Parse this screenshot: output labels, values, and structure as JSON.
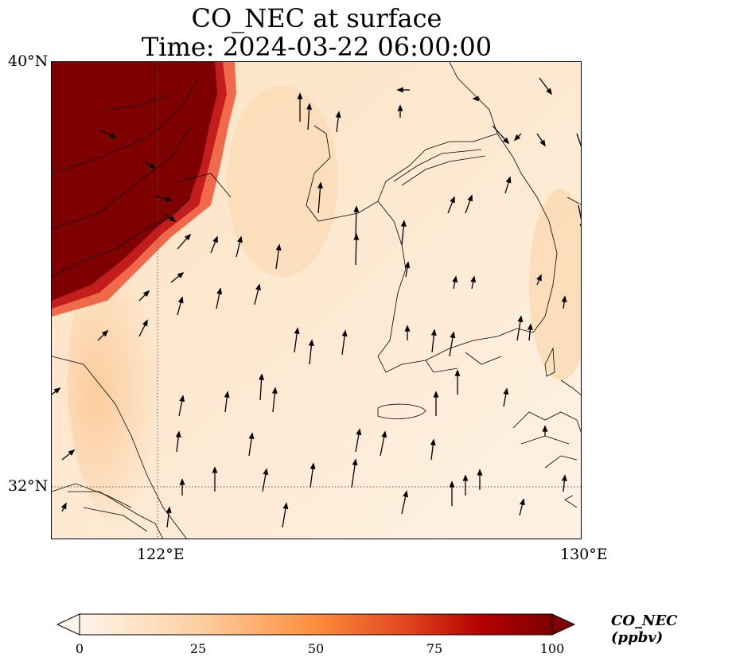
{
  "title_line1": "CO_NEC at surface",
  "title_line2": "Time: 2024-03-22 06:00:00",
  "lat_ticks": [
    "40°N",
    "32°N"
  ],
  "lon_ticks": [
    "122°E",
    "130°E"
  ],
  "colorbar": {
    "label": "CO_NEC (ppbv)",
    "ticks": [
      "0",
      "25",
      "50",
      "75",
      "100"
    ],
    "min": 0,
    "max": 100,
    "extend": "both",
    "colormap": [
      "#fff5eb",
      "#fdd0a2",
      "#fd8d3c",
      "#d94801",
      "#a30f0f",
      "#7f0000"
    ]
  },
  "map": {
    "lon_range": [
      120,
      130
    ],
    "lat_range": [
      31,
      40
    ],
    "gridlines": [
      "122°E",
      "32°N"
    ],
    "overlay": "wind vectors"
  }
}
